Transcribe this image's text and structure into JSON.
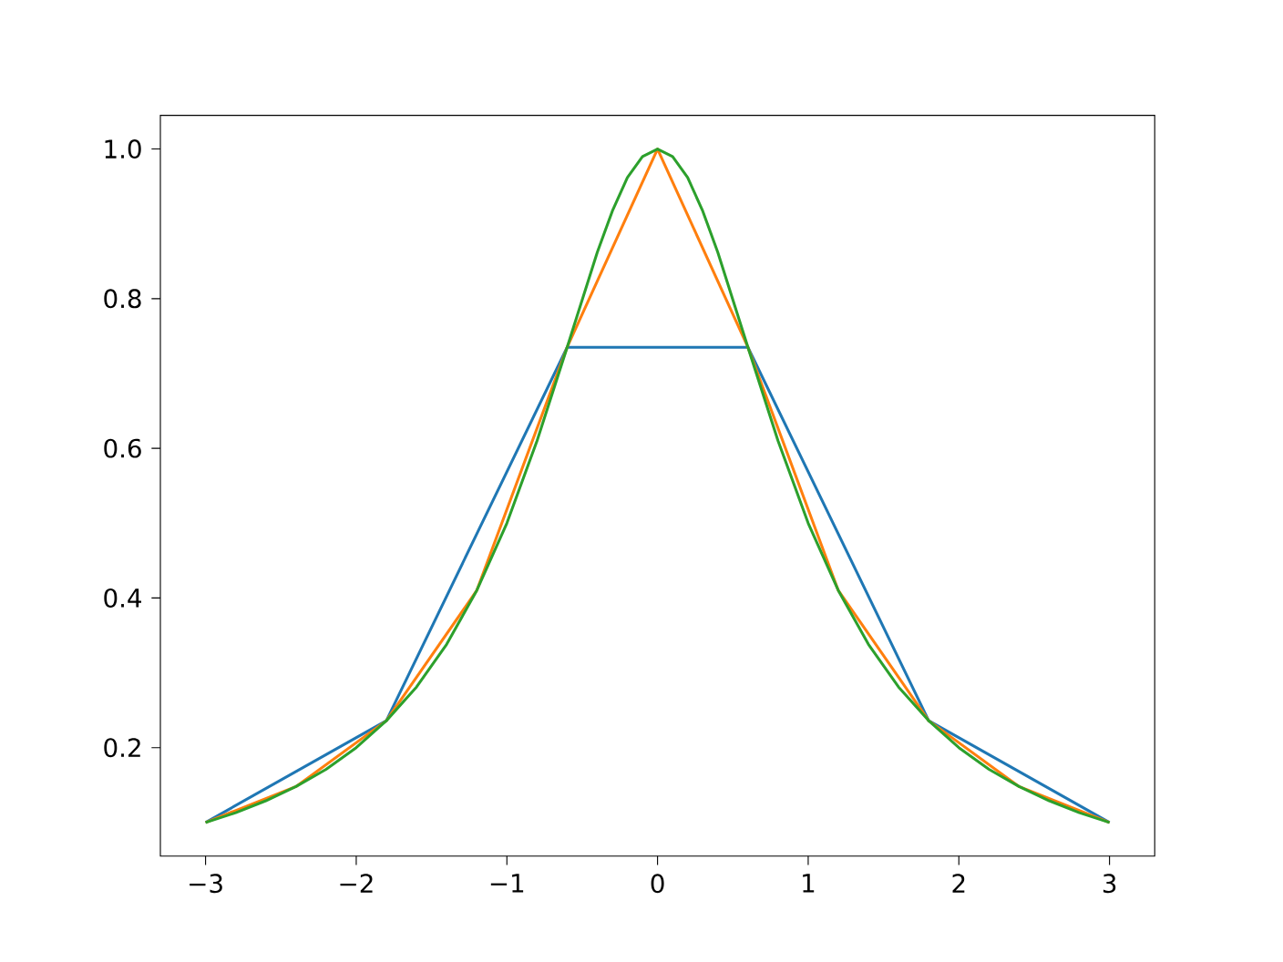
{
  "chart_data": {
    "type": "line",
    "xlim": [
      -3.3,
      3.3
    ],
    "ylim": [
      0.055,
      1.045
    ],
    "xticks": [
      {
        "value": -3,
        "label": "−3"
      },
      {
        "value": -2,
        "label": "−2"
      },
      {
        "value": -1,
        "label": "−1"
      },
      0,
      1,
      2,
      3
    ],
    "yticks": [
      0.2,
      0.4,
      0.6,
      0.8,
      {
        "value": 1,
        "label": "1.0"
      }
    ],
    "marker": "none",
    "line_style": "solid",
    "series": [
      {
        "color": "#1f77b4",
        "x": [
          -3,
          -1.8,
          -0.6,
          0.6,
          1.8,
          3
        ],
        "values": [
          0.1,
          0.236,
          0.735,
          0.735,
          0.236,
          0.1
        ]
      },
      {
        "color": "#ff7f0e",
        "x": [
          -3,
          -2.4,
          -1.8,
          -1.2,
          -0.6,
          0,
          0.6,
          1.2,
          1.8,
          2.4,
          3
        ],
        "values": [
          0.1,
          0.148,
          0.236,
          0.41,
          0.735,
          1.0,
          0.735,
          0.41,
          0.236,
          0.148,
          0.1
        ]
      },
      {
        "color": "#2ca02c",
        "x": [
          -3,
          -2.8,
          -2.6,
          -2.4,
          -2.2,
          -2,
          -1.8,
          -1.6,
          -1.4,
          -1.2,
          -1,
          -0.8,
          -0.6,
          -0.4,
          -0.3,
          -0.2,
          -0.1,
          0,
          0.1,
          0.2,
          0.3,
          0.4,
          0.6,
          0.8,
          1,
          1.2,
          1.4,
          1.6,
          1.8,
          2,
          2.2,
          2.4,
          2.6,
          2.8,
          3
        ],
        "values": [
          0.1,
          0.113,
          0.129,
          0.148,
          0.171,
          0.2,
          0.236,
          0.281,
          0.338,
          0.41,
          0.5,
          0.61,
          0.735,
          0.862,
          0.917,
          0.962,
          0.99,
          1.0,
          0.99,
          0.962,
          0.917,
          0.862,
          0.735,
          0.61,
          0.5,
          0.41,
          0.338,
          0.281,
          0.236,
          0.2,
          0.171,
          0.148,
          0.129,
          0.113,
          0.1
        ]
      }
    ]
  }
}
